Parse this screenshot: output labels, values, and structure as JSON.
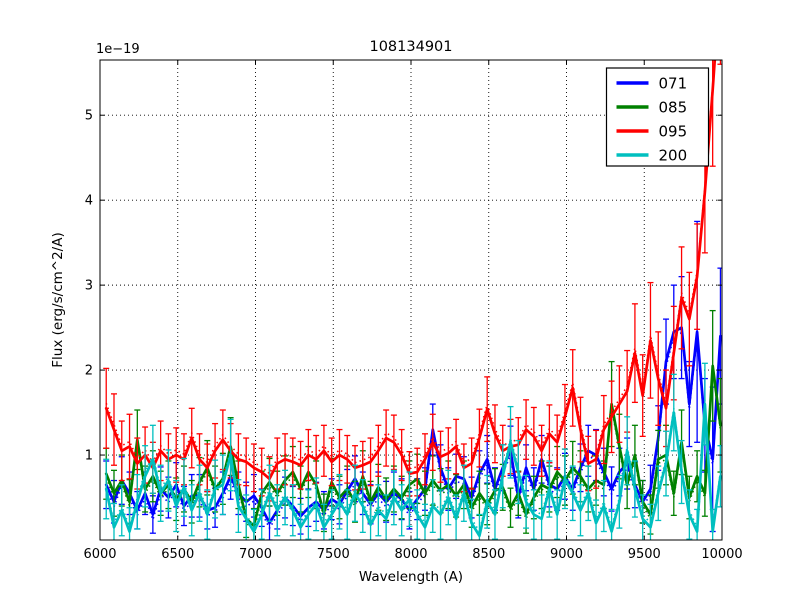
{
  "chart_data": {
    "type": "line",
    "title": "108134901",
    "xlabel": "Wavelength (A)",
    "ylabel": "Flux (erg/s/cm^2/A)",
    "y_offset_label": "1e−19",
    "xlim": [
      6000,
      10000
    ],
    "ylim": [
      0,
      5.65
    ],
    "xticks": [
      6000,
      6500,
      7000,
      7500,
      8000,
      8500,
      9000,
      9500,
      10000
    ],
    "yticks": [
      1,
      2,
      3,
      4,
      5
    ],
    "grid": true,
    "legend": {
      "position": "upper right",
      "entries": [
        "071",
        "085",
        "095",
        "200"
      ]
    },
    "x_start": 6040,
    "x_step": 50,
    "series": [
      {
        "name": "071",
        "color": "#0000ff",
        "dotted_offset": -0.06,
        "values": [
          0.65,
          0.45,
          0.7,
          0.55,
          0.35,
          0.55,
          0.3,
          0.6,
          0.5,
          0.65,
          0.4,
          0.52,
          0.52,
          0.35,
          0.38,
          0.55,
          0.75,
          0.55,
          0.45,
          0.52,
          0.38,
          0.2,
          0.35,
          0.5,
          0.4,
          0.28,
          0.38,
          0.45,
          0.35,
          0.48,
          0.42,
          0.58,
          0.72,
          0.55,
          0.42,
          0.55,
          0.45,
          0.55,
          0.48,
          0.35,
          0.48,
          0.6,
          1.3,
          0.85,
          0.6,
          0.75,
          0.72,
          0.5,
          0.78,
          0.95,
          0.6,
          0.85,
          1.05,
          0.5,
          0.85,
          0.6,
          0.95,
          0.65,
          0.6,
          0.75,
          0.6,
          0.85,
          1.05,
          1.0,
          0.8,
          0.6,
          0.8,
          0.9,
          0.65,
          0.45,
          0.6,
          1.2,
          2.1,
          2.45,
          2.5,
          1.6,
          2.45,
          1.35,
          0.95,
          2.4
        ],
        "err": [
          0.28,
          0.25,
          0.28,
          0.25,
          0.22,
          0.25,
          0.22,
          0.26,
          0.24,
          0.26,
          0.23,
          0.25,
          0.25,
          0.22,
          0.23,
          0.25,
          0.27,
          0.25,
          0.23,
          0.25,
          0.22,
          0.2,
          0.22,
          0.24,
          0.23,
          0.21,
          0.22,
          0.23,
          0.22,
          0.24,
          0.23,
          0.25,
          0.27,
          0.25,
          0.23,
          0.25,
          0.24,
          0.25,
          0.24,
          0.22,
          0.24,
          0.25,
          0.3,
          0.27,
          0.25,
          0.26,
          0.26,
          0.24,
          0.27,
          0.28,
          0.25,
          0.27,
          0.29,
          0.24,
          0.27,
          0.25,
          0.28,
          0.26,
          0.25,
          0.27,
          0.25,
          0.28,
          0.3,
          0.3,
          0.28,
          0.26,
          0.28,
          0.3,
          0.27,
          0.25,
          0.28,
          0.38,
          0.5,
          0.55,
          0.6,
          0.5,
          1.3,
          0.55,
          0.85,
          0.8
        ]
      },
      {
        "name": "085",
        "color": "#008000",
        "dotted_offset": -0.05,
        "values": [
          0.78,
          0.55,
          0.7,
          0.45,
          1.18,
          0.6,
          0.75,
          0.55,
          0.65,
          0.48,
          0.6,
          0.45,
          0.68,
          0.85,
          0.6,
          0.72,
          1.1,
          0.65,
          0.25,
          0.17,
          0.55,
          0.68,
          0.55,
          0.7,
          0.8,
          0.6,
          0.8,
          0.65,
          0.32,
          0.68,
          0.5,
          0.6,
          0.45,
          0.75,
          0.45,
          0.62,
          0.48,
          0.6,
          0.5,
          0.65,
          0.72,
          0.55,
          0.7,
          0.58,
          0.65,
          0.52,
          0.65,
          0.38,
          0.55,
          0.42,
          0.58,
          0.62,
          0.38,
          0.55,
          0.3,
          0.5,
          0.65,
          0.6,
          0.8,
          0.7,
          0.85,
          0.75,
          0.6,
          0.7,
          0.65,
          1.6,
          1.1,
          0.65,
          1.0,
          0.45,
          0.3,
          0.95,
          1.0,
          0.55,
          1.15,
          0.5,
          0.75,
          0.55,
          2.05,
          1.35
        ],
        "err": [
          0.3,
          0.27,
          0.3,
          0.26,
          0.35,
          0.27,
          0.3,
          0.26,
          0.28,
          0.25,
          0.27,
          0.25,
          0.29,
          0.32,
          0.27,
          0.3,
          0.34,
          0.28,
          0.22,
          0.2,
          0.26,
          0.28,
          0.26,
          0.29,
          0.3,
          0.27,
          0.3,
          0.28,
          0.22,
          0.28,
          0.25,
          0.27,
          0.24,
          0.3,
          0.24,
          0.27,
          0.25,
          0.27,
          0.25,
          0.28,
          0.29,
          0.26,
          0.29,
          0.26,
          0.28,
          0.25,
          0.28,
          0.23,
          0.26,
          0.24,
          0.26,
          0.27,
          0.23,
          0.26,
          0.22,
          0.25,
          0.28,
          0.27,
          0.3,
          0.29,
          0.31,
          0.3,
          0.27,
          0.29,
          0.28,
          0.5,
          0.38,
          0.28,
          0.35,
          0.25,
          0.23,
          0.34,
          0.35,
          0.26,
          0.38,
          0.25,
          0.3,
          0.27,
          0.65,
          0.55
        ]
      },
      {
        "name": "095",
        "color": "#ff0000",
        "dotted_offset": 0.06,
        "values": [
          1.55,
          1.3,
          1.05,
          1.1,
          0.9,
          1.0,
          0.85,
          1.05,
          0.95,
          1.0,
          0.95,
          1.2,
          0.95,
          0.85,
          1.05,
          1.18,
          1.05,
          0.95,
          0.92,
          0.85,
          0.8,
          0.72,
          0.9,
          0.95,
          0.92,
          0.88,
          1.0,
          0.95,
          1.05,
          0.92,
          1.0,
          0.95,
          0.85,
          0.88,
          0.92,
          1.05,
          1.2,
          1.15,
          1.0,
          0.78,
          0.8,
          0.95,
          1.15,
          0.98,
          1.02,
          1.1,
          0.85,
          0.9,
          1.2,
          1.54,
          1.25,
          1.05,
          1.1,
          1.12,
          1.3,
          1.22,
          1.05,
          1.25,
          1.15,
          1.45,
          1.79,
          1.3,
          0.9,
          0.95,
          1.3,
          1.45,
          1.6,
          1.75,
          2.2,
          1.7,
          2.35,
          1.9,
          1.55,
          2.2,
          2.85,
          2.6,
          3.1,
          4.1,
          5.3,
          6.6
        ],
        "err": [
          0.47,
          0.42,
          0.35,
          0.38,
          0.3,
          0.33,
          0.3,
          0.35,
          0.3,
          0.32,
          0.3,
          0.35,
          0.3,
          0.28,
          0.32,
          0.35,
          0.32,
          0.3,
          0.28,
          0.28,
          0.28,
          0.26,
          0.3,
          0.3,
          0.28,
          0.28,
          0.3,
          0.28,
          0.3,
          0.28,
          0.3,
          0.28,
          0.26,
          0.28,
          0.28,
          0.3,
          0.33,
          0.32,
          0.3,
          0.26,
          0.28,
          0.3,
          0.33,
          0.3,
          0.3,
          0.32,
          0.28,
          0.3,
          0.34,
          0.38,
          0.34,
          0.3,
          0.32,
          0.32,
          0.35,
          0.34,
          0.3,
          0.34,
          0.32,
          0.38,
          0.45,
          0.38,
          0.32,
          0.34,
          0.4,
          0.42,
          0.45,
          0.48,
          0.58,
          0.48,
          0.68,
          0.55,
          0.45,
          0.55,
          0.6,
          0.55,
          0.62,
          0.72,
          0.9,
          1.0
        ]
      },
      {
        "name": "200",
        "color": "#00bfbf",
        "dotted_offset": 0.05,
        "values": [
          0.6,
          0.15,
          0.35,
          0.1,
          0.45,
          0.75,
          0.95,
          0.55,
          0.7,
          0.4,
          0.62,
          0.35,
          0.55,
          0.3,
          0.6,
          0.65,
          1.0,
          0.4,
          0.25,
          0.1,
          0.3,
          0.55,
          0.35,
          0.5,
          0.35,
          0.15,
          0.3,
          0.42,
          0.15,
          0.3,
          0.45,
          0.3,
          0.55,
          0.4,
          0.18,
          0.35,
          0.25,
          0.5,
          0.35,
          0.48,
          0.3,
          0.15,
          0.4,
          0.3,
          0.5,
          0.25,
          0.55,
          0.2,
          0.05,
          0.45,
          0.3,
          0.75,
          1.15,
          0.8,
          0.45,
          0.3,
          0.25,
          0.6,
          0.3,
          0.72,
          0.55,
          0.35,
          0.55,
          0.2,
          0.4,
          0.1,
          0.45,
          1.05,
          0.6,
          0.25,
          0.15,
          0.55,
          0.9,
          1.5,
          0.8,
          0.3,
          0.1,
          1.6,
          0.1,
          0.75
        ],
        "err": [
          0.35,
          0.28,
          0.3,
          0.28,
          0.32,
          0.36,
          0.4,
          0.33,
          0.36,
          0.3,
          0.34,
          0.3,
          0.33,
          0.29,
          0.34,
          0.35,
          0.42,
          0.31,
          0.28,
          0.26,
          0.29,
          0.33,
          0.3,
          0.32,
          0.3,
          0.27,
          0.29,
          0.31,
          0.27,
          0.29,
          0.32,
          0.29,
          0.33,
          0.31,
          0.27,
          0.3,
          0.28,
          0.32,
          0.3,
          0.32,
          0.29,
          0.27,
          0.31,
          0.29,
          0.32,
          0.28,
          0.33,
          0.28,
          0.25,
          0.31,
          0.29,
          0.37,
          0.42,
          0.37,
          0.31,
          0.29,
          0.28,
          0.33,
          0.29,
          0.35,
          0.32,
          0.3,
          0.32,
          0.27,
          0.3,
          0.26,
          0.31,
          0.4,
          0.33,
          0.28,
          0.27,
          0.32,
          0.38,
          0.45,
          0.37,
          0.29,
          0.26,
          0.48,
          0.26,
          0.36
        ]
      }
    ]
  }
}
